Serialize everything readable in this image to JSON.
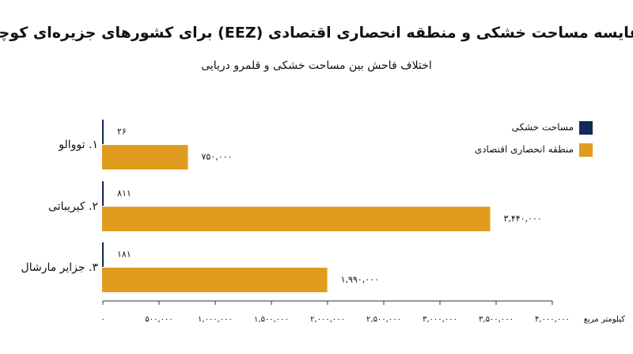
{
  "chart_data": {
    "type": "bar",
    "orientation": "horizontal",
    "title": "مقایسه مساحت خشکی و منطقه انحصاری اقتصادی (EEZ) برای کشورهای جزیره‌ای کوچک",
    "subtitle": "اختلاف فاحش بین مساحت خشکی و قلمرو دریایی",
    "x_label": "کیلومتر مربع",
    "categories": [
      "۱. تووالو",
      "۲. کیریباتی",
      "۳. جزایر مارشال"
    ],
    "series": [
      {
        "name": "مساحت خشکی",
        "color": "#14285a",
        "values": [
          26,
          811,
          181
        ],
        "value_labels": [
          "۲۶",
          "۸۱۱",
          "۱۸۱"
        ]
      },
      {
        "name": "منطقه انحصاری اقتصادی",
        "color": "#e09c1f",
        "values": [
          750000,
          3440000,
          1990000
        ],
        "value_labels": [
          "۷۵۰,۰۰۰",
          "۳,۴۴۰,۰۰۰",
          "۱,۹۹۰,۰۰۰"
        ]
      }
    ],
    "xlim": [
      0,
      4000000
    ],
    "xticks": [
      {
        "value": 0,
        "label": "۰"
      },
      {
        "value": 500000,
        "label": "۵۰۰,۰۰۰"
      },
      {
        "value": 1000000,
        "label": "۱,۰۰۰,۰۰۰"
      },
      {
        "value": 1500000,
        "label": "۱,۵۰۰,۰۰۰"
      },
      {
        "value": 2000000,
        "label": "۲,۰۰۰,۰۰۰"
      },
      {
        "value": 2500000,
        "label": "۲,۵۰۰,۰۰۰"
      },
      {
        "value": 3000000,
        "label": "۳,۰۰۰,۰۰۰"
      },
      {
        "value": 3500000,
        "label": "۳,۵۰۰,۰۰۰"
      },
      {
        "value": 4000000,
        "label": "۴,۰۰۰,۰۰۰"
      }
    ],
    "grid": false,
    "legend": "right"
  }
}
